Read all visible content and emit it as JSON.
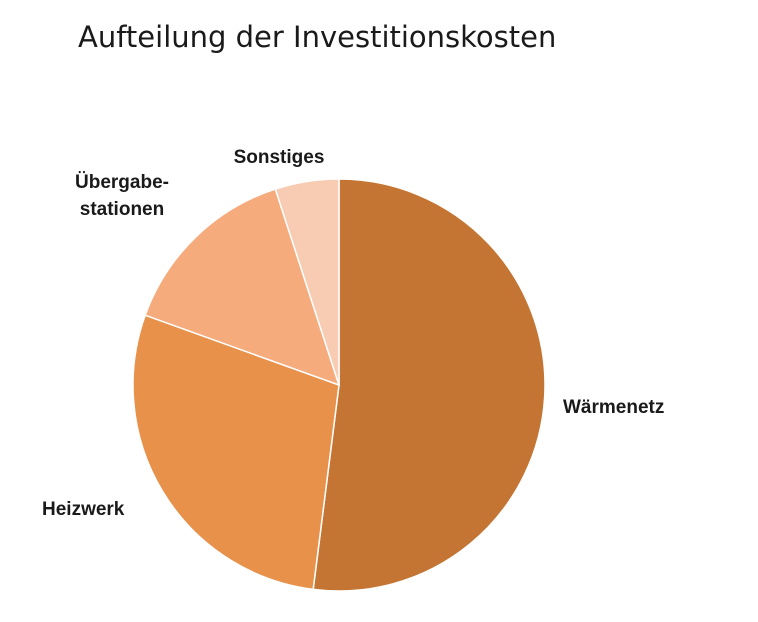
{
  "chart_data": {
    "type": "pie",
    "title": "Aufteilung der Investitionskosten",
    "slices": [
      {
        "label": "Wärmenetz",
        "label_lines": [
          "Wärmenetz"
        ],
        "value": 52.0,
        "color": "#c47533"
      },
      {
        "label": "Heizwerk",
        "label_lines": [
          "Heizwerk"
        ],
        "value": 28.5,
        "color": "#e8914a"
      },
      {
        "label": "Übergabestationen",
        "label_lines": [
          "Übergabe-",
          "stationen"
        ],
        "value": 14.5,
        "color": "#f5ab7c"
      },
      {
        "label": "Sonstiges",
        "label_lines": [
          "Sonstiges"
        ],
        "value": 5.0,
        "color": "#f8cbb3"
      }
    ]
  }
}
